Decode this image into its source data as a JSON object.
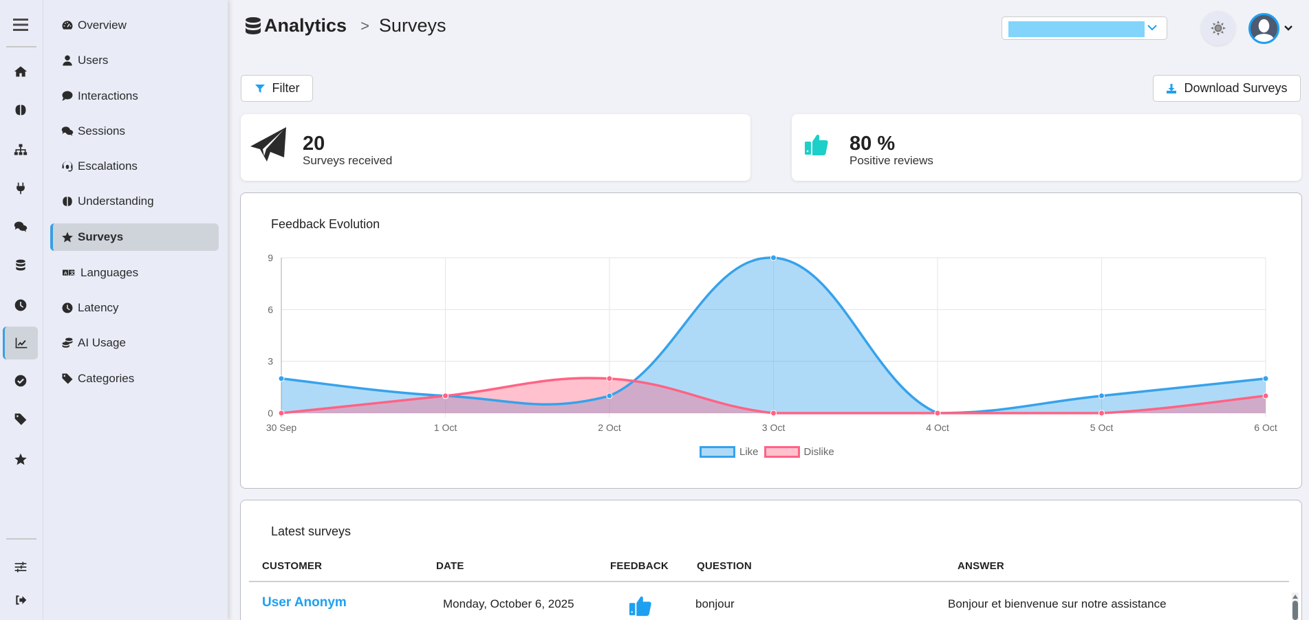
{
  "breadcrumb": {
    "root": "Analytics",
    "separator": ">",
    "current": "Surveys"
  },
  "rail": {
    "items": [
      {
        "icon": "home-icon"
      },
      {
        "icon": "brain-icon"
      },
      {
        "icon": "sitemap-icon"
      },
      {
        "icon": "plug-icon"
      },
      {
        "icon": "comments-icon"
      },
      {
        "icon": "database-icon"
      },
      {
        "icon": "clock-icon"
      },
      {
        "icon": "chart-line-icon",
        "active": true
      },
      {
        "icon": "check-circle-icon"
      },
      {
        "icon": "tag-icon"
      },
      {
        "icon": "star-icon"
      }
    ],
    "bottom": [
      {
        "icon": "sliders-icon"
      },
      {
        "icon": "sign-out-icon"
      }
    ]
  },
  "subnav": {
    "items": [
      {
        "label": "Overview",
        "icon": "gauge-icon"
      },
      {
        "label": "Users",
        "icon": "user-icon"
      },
      {
        "label": "Interactions",
        "icon": "comment-icon"
      },
      {
        "label": "Sessions",
        "icon": "comments-icon"
      },
      {
        "label": "Escalations",
        "icon": "headset-icon"
      },
      {
        "label": "Understanding",
        "icon": "brain-icon"
      },
      {
        "label": "Surveys",
        "icon": "star-icon",
        "active": true
      },
      {
        "label": "Languages",
        "icon": "language-icon"
      },
      {
        "label": "Latency",
        "icon": "clock-icon"
      },
      {
        "label": "AI Usage",
        "icon": "coins-icon"
      },
      {
        "label": "Categories",
        "icon": "tag-icon"
      }
    ]
  },
  "toolbar": {
    "filter_label": "Filter",
    "download_label": "Download Surveys"
  },
  "kpis": {
    "surveys": {
      "value": "20",
      "label": "Surveys received"
    },
    "positive": {
      "value": "80 %",
      "label": "Positive reviews"
    }
  },
  "colors": {
    "accent": "#1ea0f0",
    "like": "#36a2eb",
    "dislike": "#ff6384",
    "thumb_kpi": "#1ccfc9"
  },
  "chart_data": {
    "type": "area",
    "title": "Feedback Evolution",
    "categories": [
      "30 Sep",
      "1 Oct",
      "2 Oct",
      "3 Oct",
      "4 Oct",
      "5 Oct",
      "6 Oct"
    ],
    "series": [
      {
        "name": "Like",
        "values": [
          2,
          1,
          1,
          9,
          0,
          1,
          2
        ]
      },
      {
        "name": "Dislike",
        "values": [
          0,
          1,
          2,
          0,
          0,
          0,
          1
        ]
      }
    ],
    "yticks": [
      0,
      3,
      6,
      9
    ],
    "ylim": [
      0,
      9
    ],
    "xlabel": "",
    "ylabel": "",
    "grid": true,
    "legend": "bottom-center"
  },
  "table": {
    "title": "Latest surveys",
    "columns": [
      "CUSTOMER",
      "DATE",
      "FEEDBACK",
      "QUESTION",
      "ANSWER"
    ],
    "rows": [
      {
        "customer": "User Anonym",
        "date": "Monday, October 6, 2025",
        "feedback": "thumbs-up",
        "question": "bonjour",
        "answer": "Bonjour et bienvenue sur notre assistance"
      }
    ]
  }
}
